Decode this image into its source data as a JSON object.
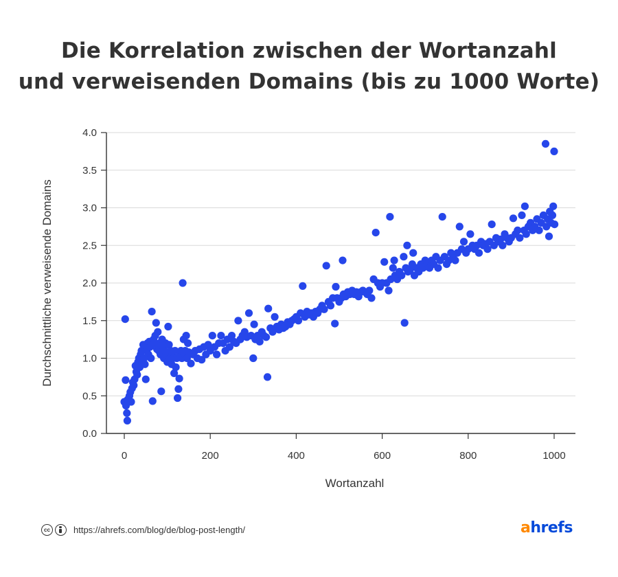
{
  "chart_data": {
    "type": "scatter",
    "title_line1": "Die Korrelation zwischen der Wortanzahl",
    "title_line2": "und verweisenden Domains (bis zu 1000 Worte)",
    "xlabel": "Wortanzahl",
    "ylabel": "Durchschnittliche verweisende Domains",
    "xlim": [
      -40,
      1050
    ],
    "ylim": [
      0,
      4.0
    ],
    "xticks": [
      0,
      200,
      400,
      600,
      800,
      1000
    ],
    "yticks": [
      0.0,
      0.5,
      1.0,
      1.5,
      2.0,
      2.5,
      3.0,
      3.5,
      4.0
    ],
    "ytick_labels": [
      "0.0",
      "0.5",
      "1.0",
      "1.5",
      "2.0",
      "2.5",
      "3.0",
      "3.5",
      "4.0"
    ],
    "grid": true,
    "point_color": "#2646ea",
    "points": [
      [
        0,
        0.42
      ],
      [
        2,
        1.52
      ],
      [
        3,
        0.71
      ],
      [
        4,
        0.37
      ],
      [
        6,
        0.27
      ],
      [
        7,
        0.17
      ],
      [
        8,
        0.45
      ],
      [
        10,
        0.42
      ],
      [
        12,
        0.5
      ],
      [
        14,
        0.55
      ],
      [
        16,
        0.42
      ],
      [
        18,
        0.6
      ],
      [
        20,
        0.68
      ],
      [
        22,
        0.64
      ],
      [
        24,
        0.72
      ],
      [
        26,
        0.9
      ],
      [
        28,
        0.82
      ],
      [
        30,
        0.78
      ],
      [
        32,
        0.95
      ],
      [
        34,
        1.0
      ],
      [
        36,
        0.88
      ],
      [
        38,
        1.05
      ],
      [
        40,
        1.1
      ],
      [
        42,
        0.95
      ],
      [
        44,
        1.18
      ],
      [
        46,
        1.0
      ],
      [
        48,
        0.92
      ],
      [
        50,
        0.72
      ],
      [
        52,
        1.1
      ],
      [
        54,
        1.2
      ],
      [
        56,
        1.05
      ],
      [
        58,
        1.22
      ],
      [
        60,
        1.15
      ],
      [
        62,
        1.0
      ],
      [
        64,
        1.62
      ],
      [
        66,
        0.43
      ],
      [
        68,
        1.25
      ],
      [
        70,
        1.2
      ],
      [
        72,
        1.3
      ],
      [
        74,
        1.47
      ],
      [
        76,
        1.12
      ],
      [
        78,
        1.35
      ],
      [
        80,
        1.1
      ],
      [
        82,
        1.2
      ],
      [
        84,
        1.05
      ],
      [
        86,
        0.56
      ],
      [
        88,
        1.25
      ],
      [
        90,
        1.15
      ],
      [
        92,
        1.0
      ],
      [
        94,
        1.1
      ],
      [
        96,
        1.2
      ],
      [
        98,
        1.05
      ],
      [
        100,
        0.95
      ],
      [
        102,
        1.42
      ],
      [
        104,
        1.18
      ],
      [
        106,
        1.0
      ],
      [
        108,
        1.1
      ],
      [
        110,
        0.92
      ],
      [
        112,
        1.05
      ],
      [
        114,
        1.0
      ],
      [
        116,
        0.8
      ],
      [
        118,
        1.1
      ],
      [
        120,
        0.88
      ],
      [
        122,
        1.0
      ],
      [
        124,
        0.47
      ],
      [
        126,
        0.59
      ],
      [
        128,
        0.73
      ],
      [
        130,
        1.05
      ],
      [
        132,
        1.1
      ],
      [
        134,
        1.0
      ],
      [
        136,
        2.0
      ],
      [
        138,
        1.25
      ],
      [
        140,
        1.05
      ],
      [
        142,
        1.1
      ],
      [
        144,
        1.3
      ],
      [
        146,
        1.0
      ],
      [
        148,
        1.2
      ],
      [
        150,
        1.08
      ],
      [
        155,
        0.93
      ],
      [
        160,
        1.05
      ],
      [
        165,
        1.1
      ],
      [
        170,
        1.0
      ],
      [
        175,
        1.12
      ],
      [
        180,
        0.98
      ],
      [
        185,
        1.15
      ],
      [
        190,
        1.05
      ],
      [
        195,
        1.18
      ],
      [
        200,
        1.1
      ],
      [
        205,
        1.3
      ],
      [
        210,
        1.15
      ],
      [
        215,
        1.05
      ],
      [
        220,
        1.2
      ],
      [
        225,
        1.3
      ],
      [
        230,
        1.2
      ],
      [
        235,
        1.1
      ],
      [
        240,
        1.25
      ],
      [
        245,
        1.15
      ],
      [
        250,
        1.3
      ],
      [
        255,
        1.22
      ],
      [
        260,
        1.2
      ],
      [
        265,
        1.5
      ],
      [
        270,
        1.25
      ],
      [
        275,
        1.3
      ],
      [
        280,
        1.35
      ],
      [
        285,
        1.28
      ],
      [
        290,
        1.6
      ],
      [
        295,
        1.3
      ],
      [
        300,
        1.0
      ],
      [
        302,
        1.45
      ],
      [
        305,
        1.25
      ],
      [
        310,
        1.3
      ],
      [
        315,
        1.22
      ],
      [
        320,
        1.35
      ],
      [
        325,
        1.3
      ],
      [
        330,
        1.28
      ],
      [
        333,
        0.75
      ],
      [
        335,
        1.66
      ],
      [
        340,
        1.4
      ],
      [
        345,
        1.35
      ],
      [
        350,
        1.55
      ],
      [
        355,
        1.42
      ],
      [
        360,
        1.38
      ],
      [
        365,
        1.45
      ],
      [
        370,
        1.4
      ],
      [
        375,
        1.42
      ],
      [
        380,
        1.48
      ],
      [
        385,
        1.45
      ],
      [
        390,
        1.5
      ],
      [
        395,
        1.52
      ],
      [
        400,
        1.55
      ],
      [
        405,
        1.5
      ],
      [
        410,
        1.6
      ],
      [
        415,
        1.96
      ],
      [
        420,
        1.55
      ],
      [
        425,
        1.62
      ],
      [
        430,
        1.58
      ],
      [
        435,
        1.6
      ],
      [
        440,
        1.55
      ],
      [
        445,
        1.62
      ],
      [
        450,
        1.6
      ],
      [
        455,
        1.65
      ],
      [
        460,
        1.7
      ],
      [
        465,
        1.65
      ],
      [
        470,
        2.23
      ],
      [
        475,
        1.75
      ],
      [
        480,
        1.7
      ],
      [
        485,
        1.8
      ],
      [
        490,
        1.46
      ],
      [
        492,
        1.95
      ],
      [
        495,
        1.8
      ],
      [
        500,
        1.75
      ],
      [
        505,
        1.8
      ],
      [
        508,
        2.3
      ],
      [
        510,
        1.85
      ],
      [
        515,
        1.82
      ],
      [
        520,
        1.88
      ],
      [
        525,
        1.85
      ],
      [
        530,
        1.9
      ],
      [
        535,
        1.85
      ],
      [
        540,
        1.88
      ],
      [
        545,
        1.82
      ],
      [
        550,
        1.88
      ],
      [
        555,
        1.9
      ],
      [
        560,
        1.88
      ],
      [
        565,
        1.85
      ],
      [
        570,
        1.9
      ],
      [
        575,
        1.8
      ],
      [
        580,
        2.05
      ],
      [
        585,
        2.67
      ],
      [
        590,
        2.0
      ],
      [
        595,
        1.95
      ],
      [
        600,
        2.0
      ],
      [
        605,
        2.28
      ],
      [
        610,
        2.0
      ],
      [
        615,
        1.9
      ],
      [
        618,
        2.88
      ],
      [
        620,
        2.05
      ],
      [
        625,
        2.2
      ],
      [
        628,
        2.3
      ],
      [
        630,
        2.1
      ],
      [
        635,
        2.05
      ],
      [
        640,
        2.15
      ],
      [
        645,
        2.1
      ],
      [
        650,
        2.35
      ],
      [
        652,
        1.47
      ],
      [
        655,
        2.2
      ],
      [
        658,
        2.5
      ],
      [
        660,
        2.15
      ],
      [
        665,
        2.18
      ],
      [
        670,
        2.25
      ],
      [
        672,
        2.4
      ],
      [
        675,
        2.1
      ],
      [
        680,
        2.2
      ],
      [
        685,
        2.15
      ],
      [
        690,
        2.25
      ],
      [
        695,
        2.2
      ],
      [
        700,
        2.3
      ],
      [
        705,
        2.25
      ],
      [
        710,
        2.2
      ],
      [
        715,
        2.3
      ],
      [
        720,
        2.25
      ],
      [
        725,
        2.35
      ],
      [
        730,
        2.2
      ],
      [
        735,
        2.3
      ],
      [
        740,
        2.88
      ],
      [
        745,
        2.35
      ],
      [
        750,
        2.25
      ],
      [
        755,
        2.3
      ],
      [
        760,
        2.4
      ],
      [
        765,
        2.35
      ],
      [
        770,
        2.3
      ],
      [
        775,
        2.4
      ],
      [
        780,
        2.75
      ],
      [
        785,
        2.45
      ],
      [
        790,
        2.55
      ],
      [
        795,
        2.4
      ],
      [
        800,
        2.45
      ],
      [
        805,
        2.65
      ],
      [
        810,
        2.5
      ],
      [
        815,
        2.45
      ],
      [
        820,
        2.5
      ],
      [
        825,
        2.4
      ],
      [
        830,
        2.55
      ],
      [
        835,
        2.5
      ],
      [
        840,
        2.52
      ],
      [
        845,
        2.45
      ],
      [
        850,
        2.55
      ],
      [
        855,
        2.78
      ],
      [
        860,
        2.5
      ],
      [
        865,
        2.6
      ],
      [
        870,
        2.55
      ],
      [
        875,
        2.58
      ],
      [
        880,
        2.5
      ],
      [
        885,
        2.65
      ],
      [
        890,
        2.6
      ],
      [
        895,
        2.55
      ],
      [
        900,
        2.6
      ],
      [
        905,
        2.86
      ],
      [
        910,
        2.65
      ],
      [
        915,
        2.7
      ],
      [
        920,
        2.6
      ],
      [
        925,
        2.9
      ],
      [
        930,
        2.7
      ],
      [
        932,
        3.02
      ],
      [
        935,
        2.65
      ],
      [
        940,
        2.75
      ],
      [
        945,
        2.8
      ],
      [
        950,
        2.7
      ],
      [
        955,
        2.75
      ],
      [
        960,
        2.85
      ],
      [
        965,
        2.7
      ],
      [
        970,
        2.8
      ],
      [
        975,
        2.9
      ],
      [
        980,
        3.85
      ],
      [
        982,
        2.75
      ],
      [
        985,
        2.85
      ],
      [
        988,
        2.62
      ],
      [
        990,
        2.95
      ],
      [
        993,
        2.8
      ],
      [
        996,
        2.9
      ],
      [
        998,
        3.02
      ],
      [
        1000,
        3.75
      ],
      [
        1001,
        2.78
      ]
    ]
  },
  "footer": {
    "cc_icon": "cc-icon",
    "by_icon": "by-icon",
    "source_url": "https://ahrefs.com/blog/de/blog-post-length/"
  },
  "logo": {
    "first_letter": "a",
    "rest": "hrefs",
    "first_color": "#ff8800",
    "rest_color": "#054ada"
  }
}
